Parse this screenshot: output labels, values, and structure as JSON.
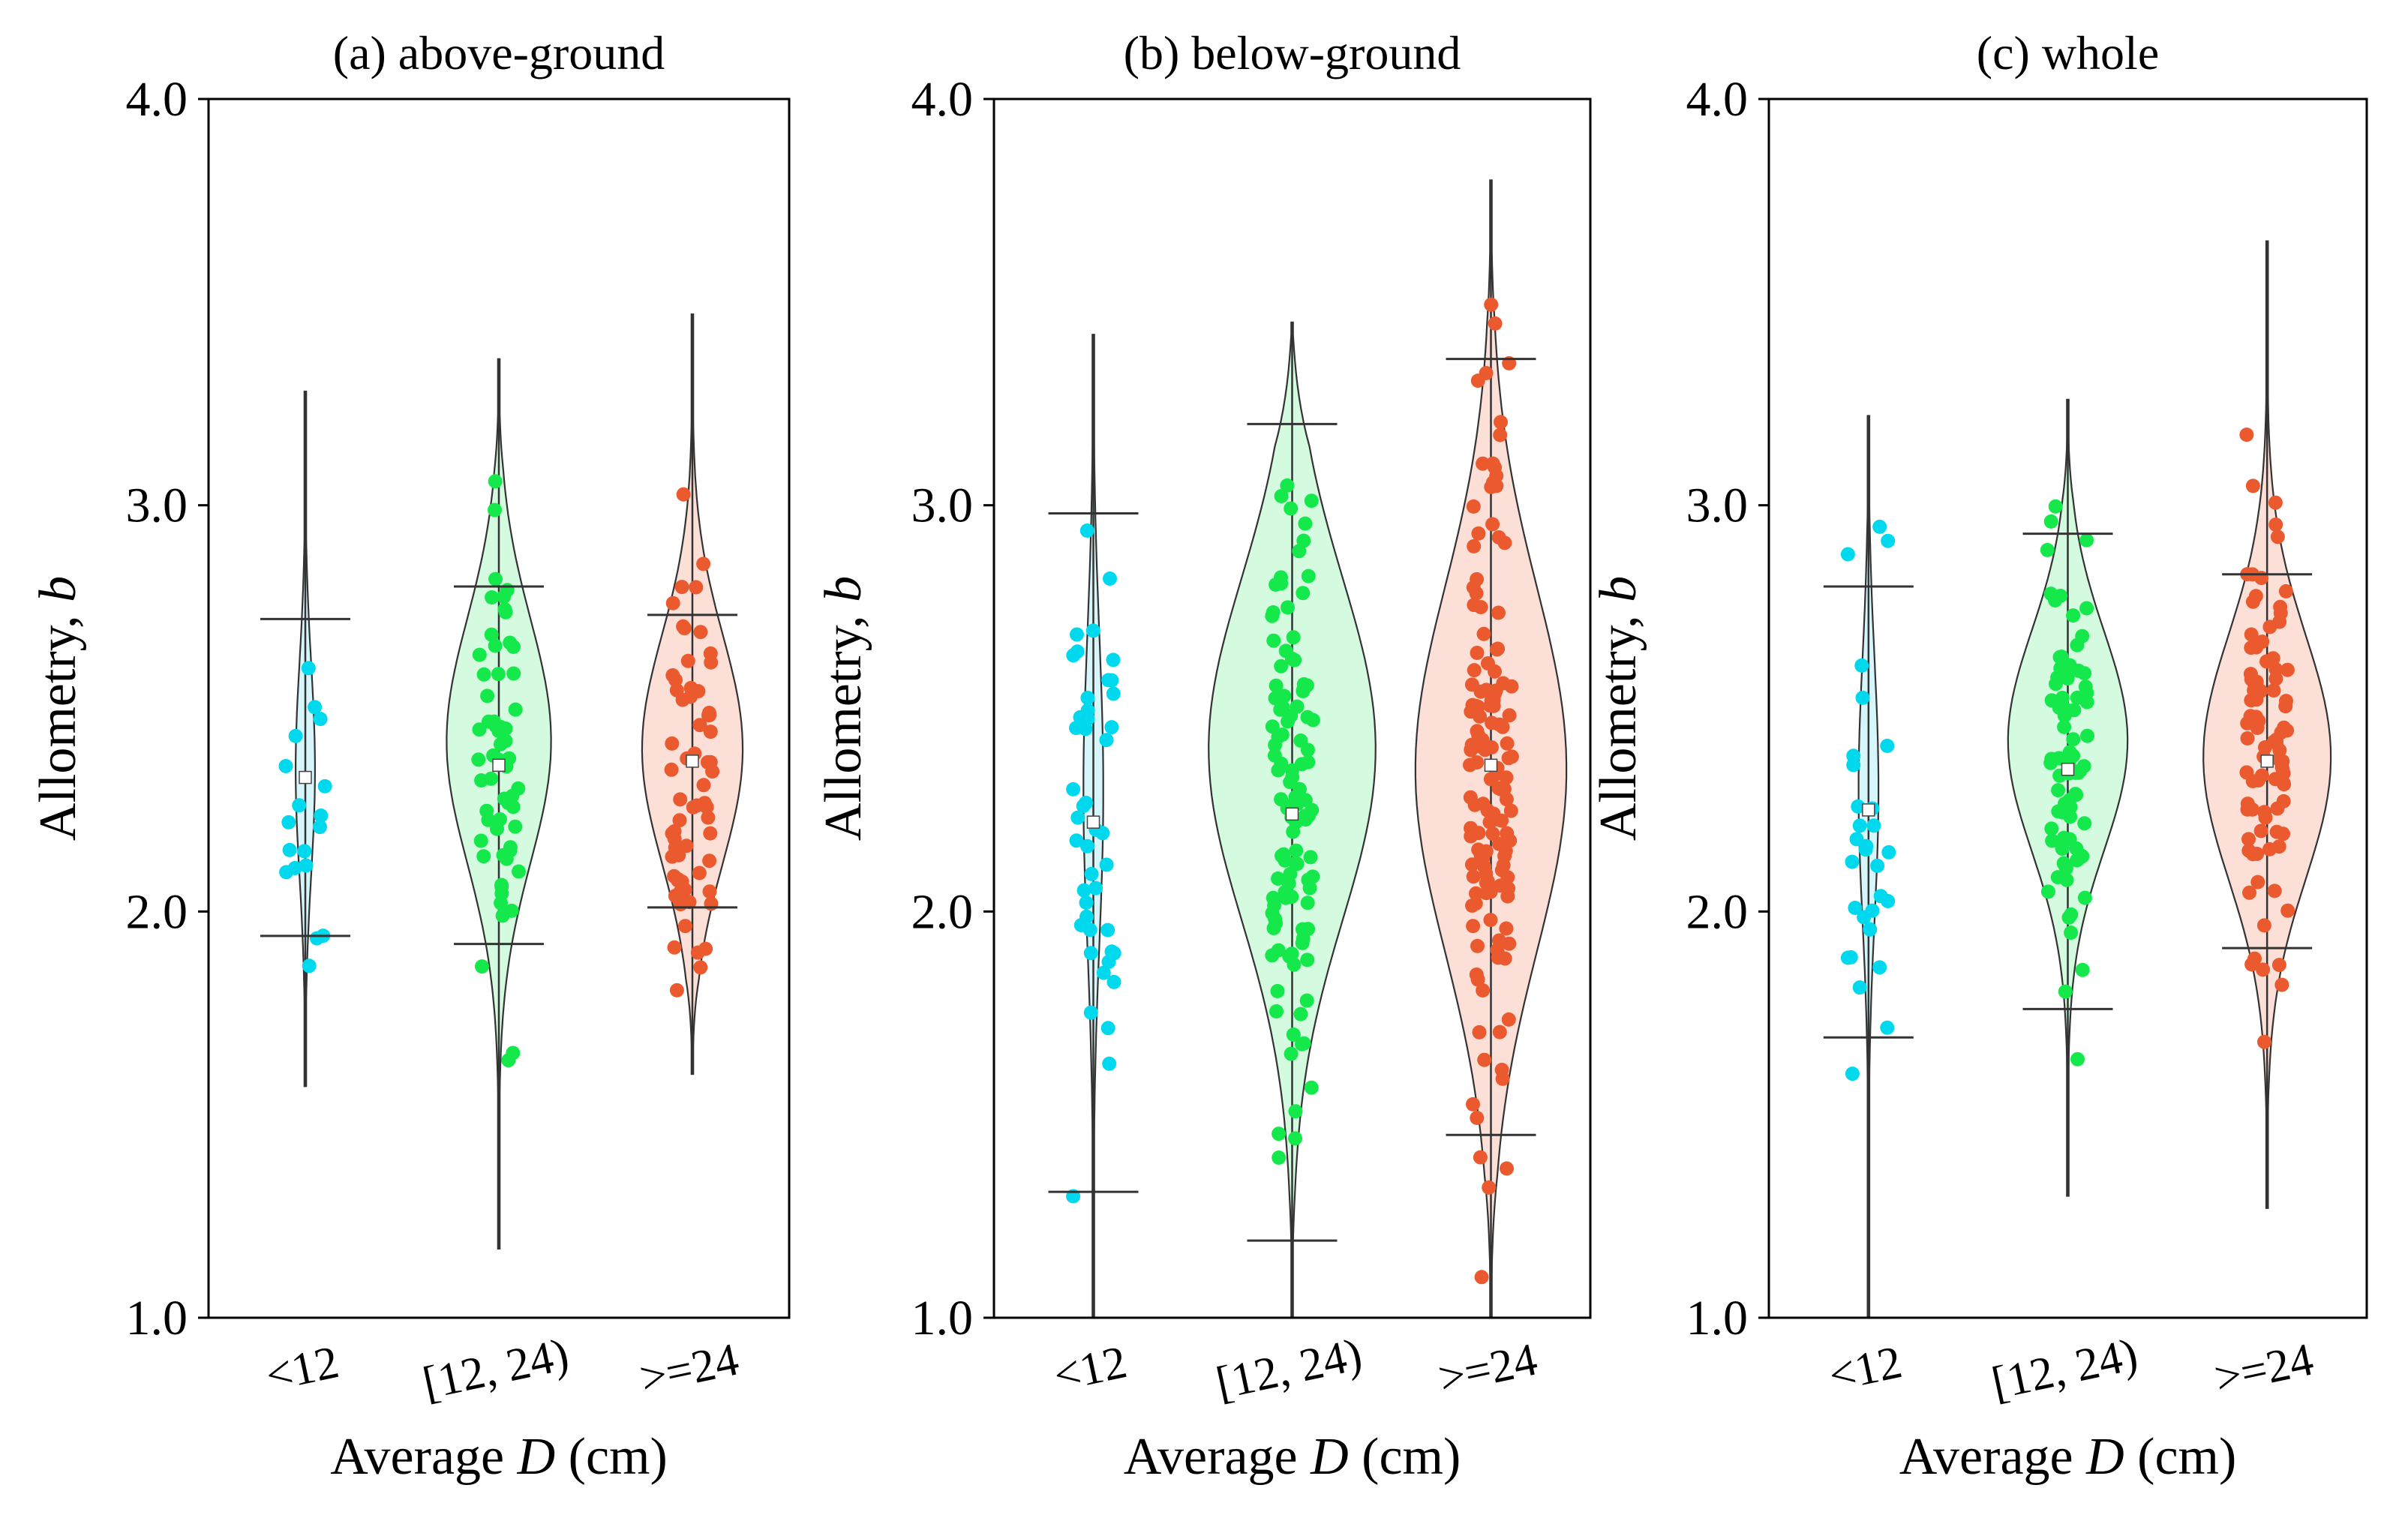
{
  "chart_data": [
    {
      "type": "violin",
      "title": "(a) above-ground",
      "xlabel_prefix": "Average ",
      "xlabel_var": "D",
      "xlabel_suffix": " (cm)",
      "ylabel_prefix": "Allometry, ",
      "ylabel_var": "b",
      "ylim": [
        1.0,
        4.0
      ],
      "yticks": [
        "1.0",
        "2.0",
        "3.0",
        "4.0"
      ],
      "categories": [
        "<12",
        "[12, 24)",
        ">=24"
      ],
      "groups": [
        {
          "name": "<12",
          "color": "#00d8ee",
          "fill": "#d6f6fb",
          "min": 1.57,
          "max": 3.28,
          "whisker_low": 1.94,
          "whisker_high": 2.72,
          "mean": 2.33,
          "mode": 2.35,
          "width": 0.05,
          "n": 18,
          "spread": 0.26,
          "seed": 11
        },
        {
          "name": "[12, 24)",
          "color": "#15e84a",
          "fill": "#d4fbe0",
          "min": 1.17,
          "max": 3.36,
          "whisker_low": 1.92,
          "whisker_high": 2.8,
          "mean": 2.36,
          "mode": 2.42,
          "width": 0.27,
          "n": 60,
          "spread": 0.3,
          "seed": 23
        },
        {
          "name": ">=24",
          "color": "#eb5a2e",
          "fill": "#fcdfd6",
          "min": 1.6,
          "max": 3.47,
          "whisker_low": 2.01,
          "whisker_high": 2.73,
          "mean": 2.37,
          "mode": 2.4,
          "width": 0.26,
          "n": 65,
          "spread": 0.28,
          "seed": 37
        }
      ]
    },
    {
      "type": "violin",
      "title": "(b) below-ground",
      "xlabel_prefix": "Average ",
      "xlabel_var": "D",
      "xlabel_suffix": " (cm)",
      "ylabel_prefix": "Allometry, ",
      "ylabel_var": "b",
      "ylim": [
        1.0,
        4.0
      ],
      "yticks": [
        "1.0",
        "2.0",
        "3.0",
        "4.0"
      ],
      "categories": [
        "<12",
        "[12, 24)",
        ">=24"
      ],
      "groups": [
        {
          "name": "<12",
          "color": "#00d8ee",
          "fill": "#d6f6fb",
          "min": 1.0,
          "max": 3.42,
          "whisker_low": 1.31,
          "whisker_high": 2.98,
          "mean": 2.22,
          "mode": 2.3,
          "width": 0.05,
          "n": 45,
          "spread": 0.38,
          "seed": 41
        },
        {
          "name": "[12, 24)",
          "color": "#15e84a",
          "fill": "#d4fbe0",
          "min": 1.0,
          "max": 3.45,
          "whisker_low": 1.19,
          "whisker_high": 3.2,
          "mean": 2.24,
          "mode": 2.4,
          "width": 0.42,
          "n": 110,
          "spread": 0.42,
          "seed": 53
        },
        {
          "name": ">=24",
          "color": "#eb5a2e",
          "fill": "#fcdfd6",
          "min": 1.0,
          "max": 3.8,
          "whisker_low": 1.45,
          "whisker_high": 3.36,
          "mean": 2.36,
          "mode": 2.35,
          "width": 0.38,
          "n": 140,
          "spread": 0.45,
          "seed": 67
        }
      ]
    },
    {
      "type": "violin",
      "title": "(c) whole",
      "xlabel_prefix": "Average ",
      "xlabel_var": "D",
      "xlabel_suffix": " (cm)",
      "ylabel_prefix": "Allometry, ",
      "ylabel_var": "b",
      "ylim": [
        1.0,
        4.0
      ],
      "yticks": [
        "1.0",
        "2.0",
        "3.0",
        "4.0"
      ],
      "categories": [
        "<12",
        "[12, 24)",
        ">=24"
      ],
      "groups": [
        {
          "name": "<12",
          "color": "#00d8ee",
          "fill": "#d6f6fb",
          "min": 1.0,
          "max": 3.22,
          "whisker_low": 1.69,
          "whisker_high": 2.8,
          "mean": 2.25,
          "mode": 2.3,
          "width": 0.05,
          "n": 30,
          "spread": 0.32,
          "seed": 71
        },
        {
          "name": "[12, 24)",
          "color": "#15e84a",
          "fill": "#d4fbe0",
          "min": 1.3,
          "max": 3.26,
          "whisker_low": 1.76,
          "whisker_high": 2.93,
          "mean": 2.35,
          "mode": 2.42,
          "width": 0.3,
          "n": 80,
          "spread": 0.27,
          "seed": 83
        },
        {
          "name": ">=24",
          "color": "#eb5a2e",
          "fill": "#fcdfd6",
          "min": 1.27,
          "max": 3.65,
          "whisker_low": 1.91,
          "whisker_high": 2.83,
          "mean": 2.37,
          "mode": 2.38,
          "width": 0.32,
          "n": 90,
          "spread": 0.3,
          "seed": 97
        }
      ]
    }
  ]
}
